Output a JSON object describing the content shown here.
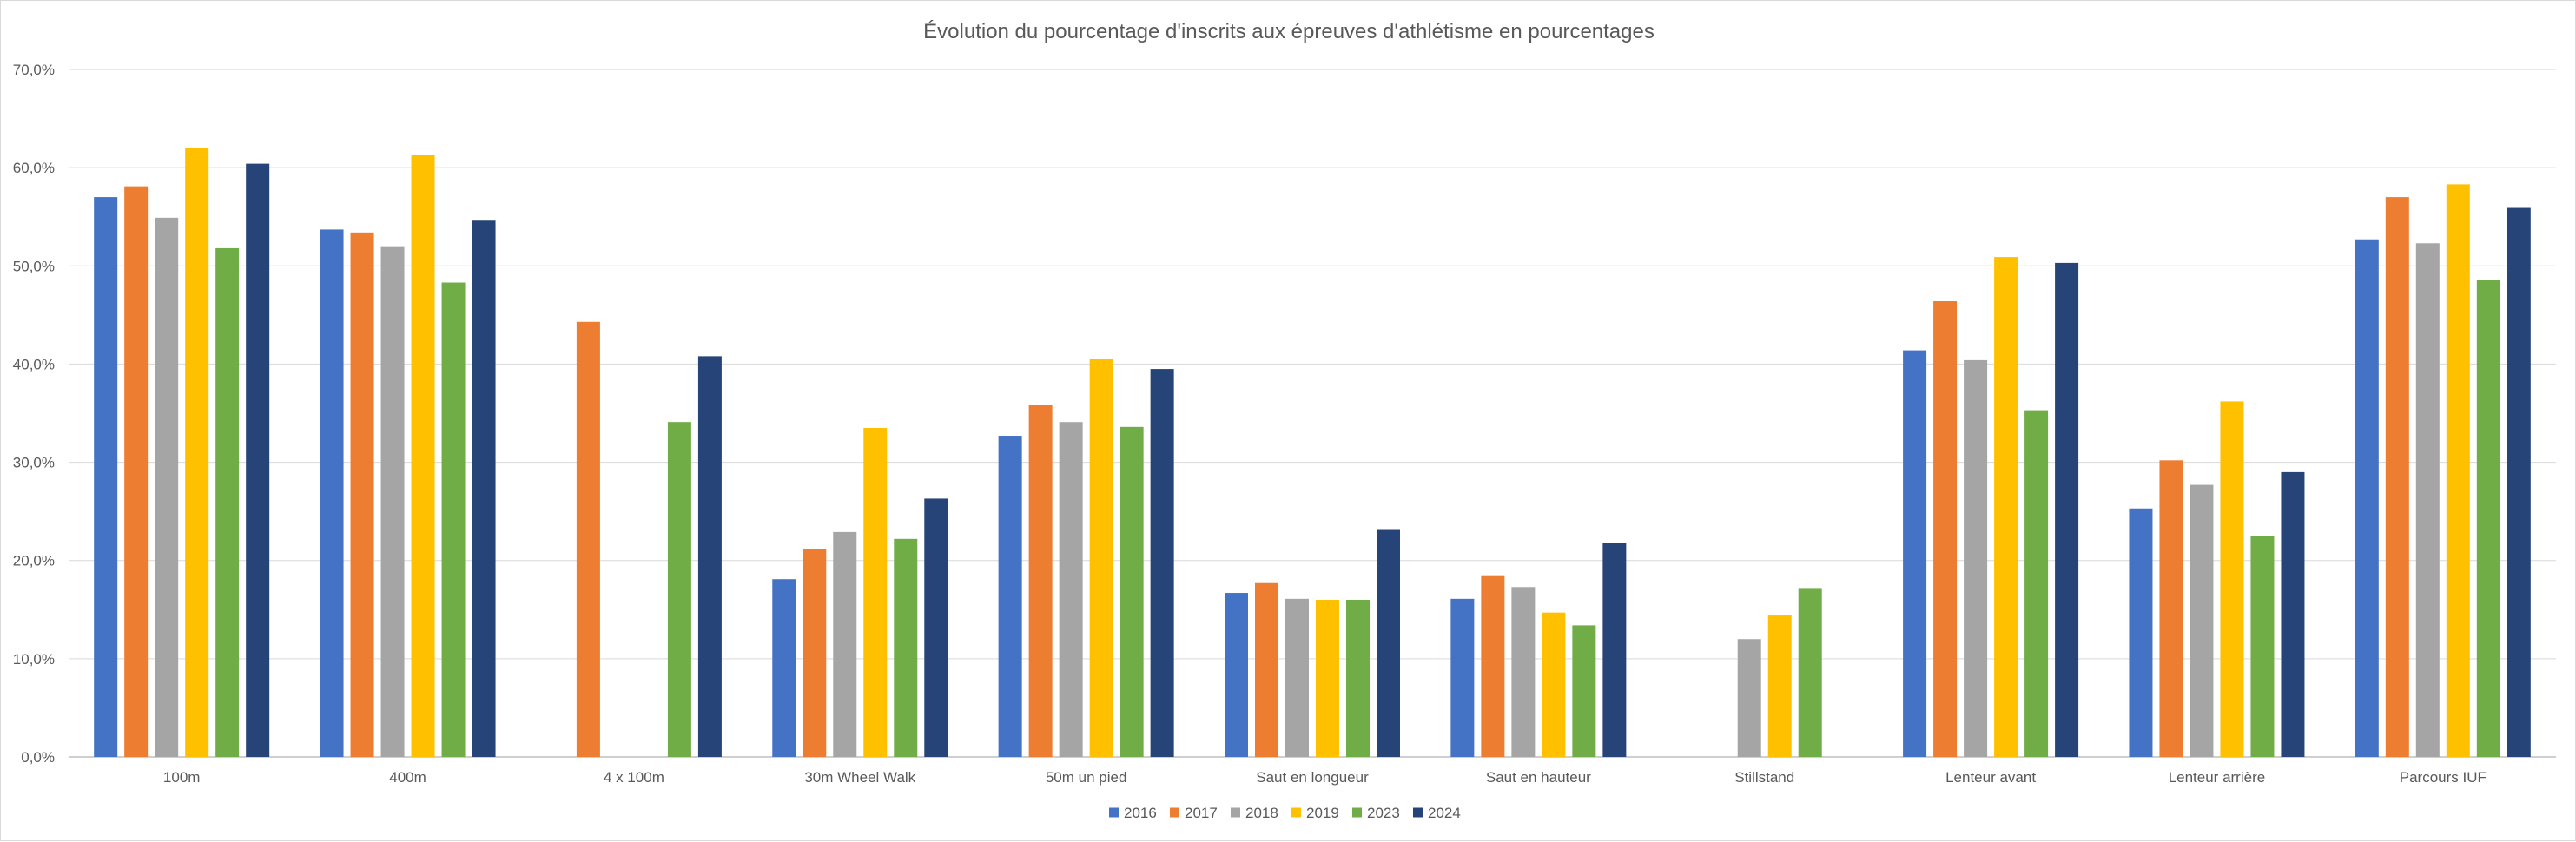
{
  "chart_data": {
    "type": "bar",
    "title": "Évolution du pourcentage d'inscrits aux épreuves d'athlétisme en pourcentages",
    "xlabel": "",
    "ylabel": "",
    "ylim": [
      0,
      70
    ],
    "y_ticks": [
      "0,0%",
      "10,0%",
      "20,0%",
      "30,0%",
      "40,0%",
      "50,0%",
      "60,0%",
      "70,0%"
    ],
    "grid": true,
    "legend_position": "bottom",
    "categories": [
      "100m",
      "400m",
      "4 x 100m",
      "30m Wheel Walk",
      "50m un pied",
      "Saut en longueur",
      "Saut en hauteur",
      "Stillstand",
      "Lenteur avant",
      "Lenteur arrière",
      "Parcours IUF"
    ],
    "series": [
      {
        "name": "2016",
        "color": "#4472c4",
        "values": [
          57.0,
          53.7,
          null,
          18.1,
          32.7,
          16.7,
          16.1,
          null,
          41.4,
          25.3,
          52.7
        ]
      },
      {
        "name": "2017",
        "color": "#ed7d31",
        "values": [
          58.1,
          53.4,
          44.3,
          21.2,
          35.8,
          17.7,
          18.5,
          null,
          46.4,
          30.2,
          57.0
        ]
      },
      {
        "name": "2018",
        "color": "#a5a5a5",
        "values": [
          54.9,
          52.0,
          null,
          22.9,
          34.1,
          16.1,
          17.3,
          12.0,
          40.4,
          27.7,
          52.3
        ]
      },
      {
        "name": "2019",
        "color": "#ffc000",
        "values": [
          62.0,
          61.3,
          null,
          33.5,
          40.5,
          16.0,
          14.7,
          14.4,
          50.9,
          36.2,
          58.3
        ]
      },
      {
        "name": "2023",
        "color": "#70ad47",
        "values": [
          51.8,
          48.3,
          34.1,
          22.2,
          33.6,
          16.0,
          13.4,
          17.2,
          35.3,
          22.5,
          48.6
        ]
      },
      {
        "name": "2024",
        "color": "#264478",
        "values": [
          60.4,
          54.6,
          40.8,
          26.3,
          39.5,
          23.2,
          21.8,
          null,
          50.3,
          29.0,
          55.9
        ]
      }
    ]
  }
}
